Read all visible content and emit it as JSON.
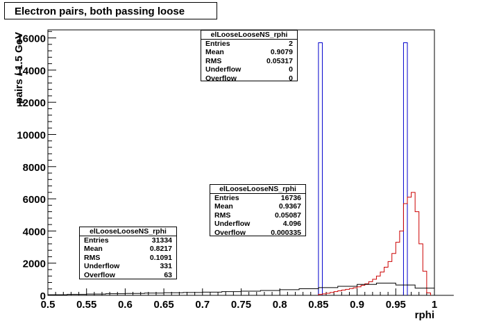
{
  "title": "Electron pairs, both passing loose",
  "chart_data": {
    "type": "histogram",
    "xlabel": "rphi",
    "ylabel": "pairs / 1.5 GeV",
    "xlim": [
      0.5,
      1.0
    ],
    "ylim": [
      0,
      16500
    ],
    "xticks": [
      "0.5",
      "0.55",
      "0.6",
      "0.65",
      "0.7",
      "0.75",
      "0.8",
      "0.85",
      "0.9",
      "0.95",
      "1"
    ],
    "yticks": [
      "0",
      "2000",
      "4000",
      "6000",
      "8000",
      "10000",
      "12000",
      "14000",
      "16000"
    ],
    "grid": false,
    "bin_width": 0.005,
    "series": [
      {
        "color": "#0000cc",
        "spikes": [
          {
            "x": 0.8525,
            "y": 15700
          },
          {
            "x": 0.9625,
            "y": 15700
          }
        ]
      },
      {
        "color": "#cc0000",
        "x": [
          0.85,
          0.855,
          0.86,
          0.865,
          0.87,
          0.875,
          0.88,
          0.885,
          0.89,
          0.895,
          0.9,
          0.905,
          0.91,
          0.915,
          0.92,
          0.925,
          0.93,
          0.935,
          0.94,
          0.945,
          0.95,
          0.955,
          0.96,
          0.965,
          0.97,
          0.975,
          0.98,
          0.985,
          0.99
        ],
        "values": [
          60,
          90,
          130,
          180,
          230,
          280,
          330,
          370,
          420,
          470,
          530,
          620,
          720,
          850,
          1000,
          1200,
          1450,
          1750,
          2100,
          2600,
          3300,
          4000,
          5700,
          6100,
          6400,
          5200,
          3200,
          1500,
          150
        ]
      },
      {
        "color": "#000000",
        "x": [
          0.5,
          0.525,
          0.55,
          0.575,
          0.6,
          0.625,
          0.65,
          0.675,
          0.7,
          0.725,
          0.75,
          0.775,
          0.8,
          0.825,
          0.85,
          0.875,
          0.9,
          0.925,
          0.95,
          0.975,
          1.0
        ],
        "values": [
          40,
          60,
          80,
          100,
          120,
          140,
          160,
          180,
          200,
          230,
          260,
          300,
          350,
          410,
          480,
          560,
          680,
          760,
          640,
          450,
          0
        ]
      }
    ]
  },
  "stats": [
    {
      "name": "elLooseLooseNS_rphi",
      "rows": [
        {
          "label": "Entries",
          "value": "2"
        },
        {
          "label": "Mean",
          "value": "0.9079"
        },
        {
          "label": "RMS",
          "value": "0.05317"
        },
        {
          "label": "Underflow",
          "value": "0"
        },
        {
          "label": "Overflow",
          "value": "0"
        }
      ]
    },
    {
      "name": "elLooseLooseNS_rphi",
      "rows": [
        {
          "label": "Entries",
          "value": "16736"
        },
        {
          "label": "Mean",
          "value": "0.9367"
        },
        {
          "label": "RMS",
          "value": "0.05087"
        },
        {
          "label": "Underflow",
          "value": "4.096"
        },
        {
          "label": "Overflow",
          "value": "0.000335"
        }
      ]
    },
    {
      "name": "elLooseLooseNS_rphi",
      "rows": [
        {
          "label": "Entries",
          "value": "31334"
        },
        {
          "label": "Mean",
          "value": "0.8217"
        },
        {
          "label": "RMS",
          "value": "0.1091"
        },
        {
          "label": "Underflow",
          "value": "331"
        },
        {
          "label": "Overflow",
          "value": "63"
        }
      ]
    }
  ]
}
